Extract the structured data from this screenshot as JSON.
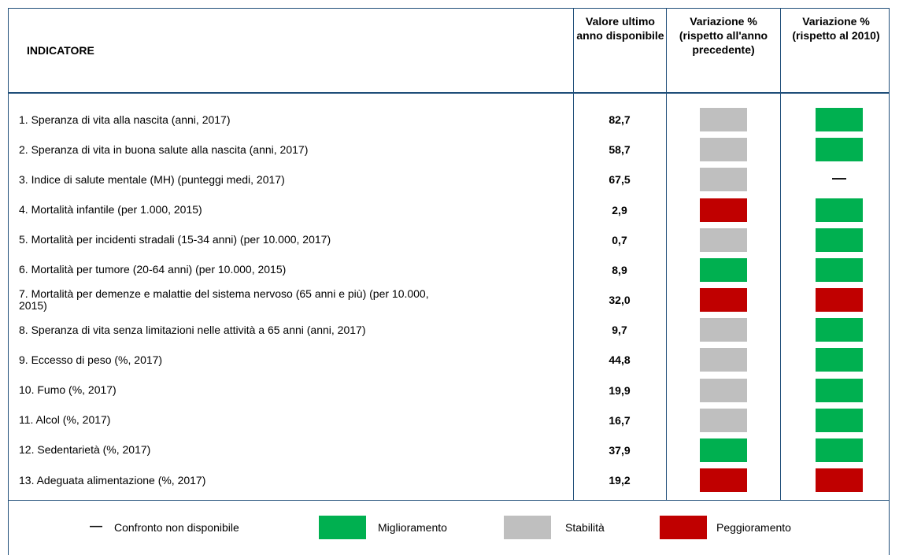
{
  "header": {
    "indicator": "INDICATORE",
    "value": "Valore ultimo anno disponibile",
    "change_prev": "Variazione % (rispetto all'anno precedente)",
    "change_2010": "Variazione % (rispetto al 2010)"
  },
  "legend": [
    {
      "symbol": "—",
      "label": "Confronto non disponibile"
    },
    {
      "color": "#00b050",
      "label": "Miglioramento"
    },
    {
      "color": "#bfbfbf",
      "label": "Stabilità"
    },
    {
      "color": "#c00000",
      "label": "Peggioramento"
    }
  ],
  "rows": [
    {
      "indicator": "1. Speranza di vita alla nascita (anni, 2017)",
      "value": "82,7",
      "change_prev": "#bfbfbf",
      "change_2010": "#00b050"
    },
    {
      "indicator": "2. Speranza di vita in buona salute alla nascita (anni, 2017)",
      "value": "58,7",
      "change_prev": "#bfbfbf",
      "change_2010": "#00b050"
    },
    {
      "indicator": "3. Indice di salute mentale (MH) (punteggi medi, 2017)",
      "value": "67,5",
      "change_prev": "#bfbfbf",
      "change_2010": null
    },
    {
      "indicator": "4. Mortalità infantile (per 1.000, 2015)",
      "value": "2,9",
      "change_prev": "#c00000",
      "change_2010": "#00b050"
    },
    {
      "indicator": "5. Mortalità per incidenti stradali (15-34 anni) (per 10.000, 2017)",
      "value": "0,7",
      "change_prev": "#bfbfbf",
      "change_2010": "#00b050"
    },
    {
      "indicator": "6. Mortalità per tumore (20-64 anni) (per 10.000, 2015)",
      "value": "8,9",
      "change_prev": "#00b050",
      "change_2010": "#00b050"
    },
    {
      "indicator": "7. Mortalità per demenze e malattie del sistema nervoso (65 anni e più) (per 10.000, 2015)",
      "value": "32,0",
      "change_prev": "#c00000",
      "change_2010": "#c00000"
    },
    {
      "indicator": "8. Speranza di vita senza limitazioni nelle attività a 65 anni (anni, 2017)",
      "value": "9,7",
      "change_prev": "#bfbfbf",
      "change_2010": "#00b050"
    },
    {
      "indicator": "9. Eccesso di peso (%, 2017)",
      "value": "44,8",
      "change_prev": "#bfbfbf",
      "change_2010": "#00b050"
    },
    {
      "indicator": "10. Fumo (%, 2017)",
      "value": "19,9",
      "change_prev": "#bfbfbf",
      "change_2010": "#00b050"
    },
    {
      "indicator": "11. Alcol (%, 2017)",
      "value": "16,7",
      "change_prev": "#bfbfbf",
      "change_2010": "#00b050"
    },
    {
      "indicator": "12. Sedentarietà (%, 2017)",
      "value": "37,9",
      "change_prev": "#00b050",
      "change_2010": "#00b050"
    },
    {
      "indicator": "13. Adeguata alimentazione (%, 2017)",
      "value": "19,2",
      "change_prev": "#c00000",
      "change_2010": "#c00000"
    }
  ]
}
